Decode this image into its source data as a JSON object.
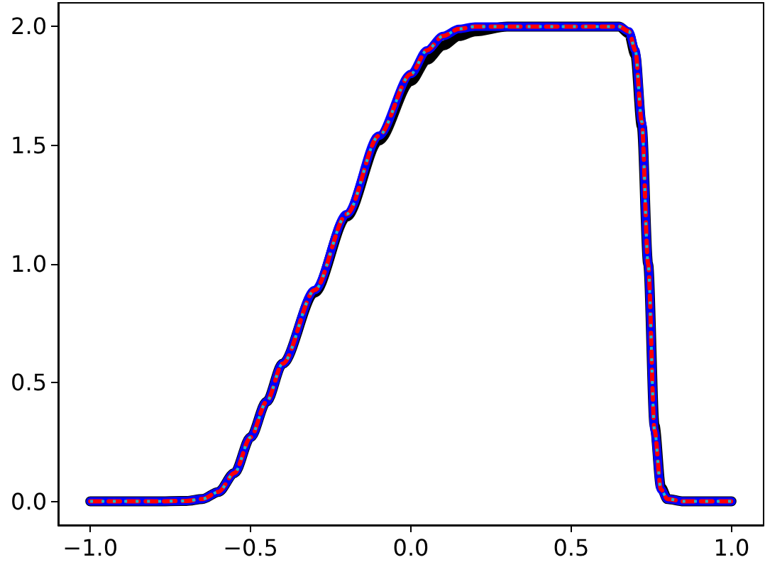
{
  "chart_data": {
    "type": "line",
    "x": [
      -1.0,
      -0.8,
      -0.7,
      -0.65,
      -0.6,
      -0.55,
      -0.5,
      -0.45,
      -0.4,
      -0.3,
      -0.2,
      -0.1,
      0.0,
      0.05,
      0.1,
      0.15,
      0.2,
      0.3,
      0.4,
      0.5,
      0.6,
      0.65,
      0.68,
      0.7,
      0.72,
      0.74,
      0.76,
      0.78,
      0.8,
      0.85,
      0.9,
      1.0
    ],
    "series": [
      {
        "color": "#000000",
        "values": [
          0,
          0,
          0.002,
          0.01,
          0.04,
          0.12,
          0.27,
          0.42,
          0.58,
          0.88,
          1.2,
          1.52,
          1.77,
          1.86,
          1.92,
          1.96,
          1.98,
          2.0,
          2.0,
          2.0,
          2.0,
          2.0,
          1.97,
          1.88,
          1.58,
          1.0,
          0.32,
          0.06,
          0.01,
          0,
          0,
          0
        ]
      },
      {
        "color": "#0000ff",
        "values": [
          0,
          0,
          0.002,
          0.01,
          0.04,
          0.12,
          0.27,
          0.42,
          0.58,
          0.89,
          1.21,
          1.54,
          1.8,
          1.9,
          1.96,
          1.99,
          2.0,
          2.0,
          2.0,
          2.0,
          2.0,
          2.0,
          1.98,
          1.9,
          1.6,
          1.0,
          0.3,
          0.05,
          0.01,
          0,
          0,
          0
        ]
      },
      {
        "color": "#ff0000",
        "line_style": "dashed",
        "values": [
          0,
          0,
          0.002,
          0.01,
          0.04,
          0.12,
          0.27,
          0.42,
          0.58,
          0.89,
          1.21,
          1.54,
          1.8,
          1.9,
          1.96,
          1.99,
          2.0,
          2.0,
          2.0,
          2.0,
          2.0,
          2.0,
          1.98,
          1.9,
          1.6,
          1.0,
          0.3,
          0.05,
          0.01,
          0,
          0,
          0
        ]
      },
      {
        "color": "#17becf",
        "line_style": "dotted",
        "values": [
          0,
          0,
          0.002,
          0.01,
          0.04,
          0.12,
          0.27,
          0.42,
          0.58,
          0.89,
          1.21,
          1.54,
          1.8,
          1.9,
          1.96,
          1.99,
          2.0,
          2.0,
          2.0,
          2.0,
          2.0,
          2.0,
          1.98,
          1.9,
          1.6,
          1.0,
          0.3,
          0.05,
          0.01,
          0,
          0,
          0
        ]
      }
    ],
    "xlim": [
      -1.1,
      1.1
    ],
    "xticks": [
      {
        "value": -1,
        "label": "−1.0"
      },
      {
        "value": -0.5,
        "label": "−0.5"
      },
      {
        "value": 0,
        "label": "0.0"
      },
      {
        "value": 0.5,
        "label": "0.5"
      },
      {
        "value": 1,
        "label": "1.0"
      }
    ],
    "ylim": [
      -0.1,
      2.1
    ],
    "yticks": [
      {
        "value": 0,
        "label": "0.0"
      },
      {
        "value": 0.5,
        "label": "0.5"
      },
      {
        "value": 1,
        "label": "1.0"
      },
      {
        "value": 1.5,
        "label": "1.5"
      },
      {
        "value": 2,
        "label": "2.0"
      }
    ],
    "grid": false,
    "marker": "none",
    "line_style": "solid"
  }
}
